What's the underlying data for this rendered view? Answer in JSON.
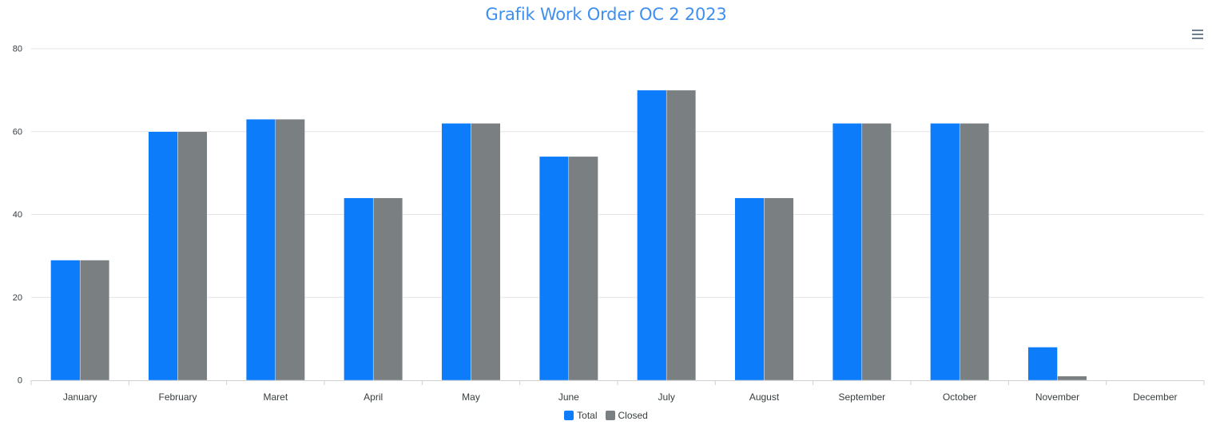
{
  "chart_data": {
    "type": "bar",
    "title": "Grafik Work Order OC 2 2023",
    "xlabel": "",
    "ylabel": "",
    "categories": [
      "January",
      "February",
      "Maret",
      "April",
      "May",
      "June",
      "July",
      "August",
      "September",
      "October",
      "November",
      "December"
    ],
    "series": [
      {
        "name": "Total",
        "color": "#0d7cfa",
        "values": [
          29,
          60,
          63,
          44,
          62,
          54,
          70,
          44,
          62,
          62,
          8,
          0
        ]
      },
      {
        "name": "Closed",
        "color": "#7a8082",
        "values": [
          29,
          60,
          63,
          44,
          62,
          54,
          70,
          44,
          62,
          62,
          1,
          0
        ]
      }
    ],
    "ylim": [
      0,
      80
    ],
    "yticks": [
      0,
      20,
      40,
      60,
      80
    ],
    "grid": true,
    "legend_position": "bottom-center"
  },
  "toolbar": {
    "menu_icon": "hamburger-menu-icon"
  }
}
